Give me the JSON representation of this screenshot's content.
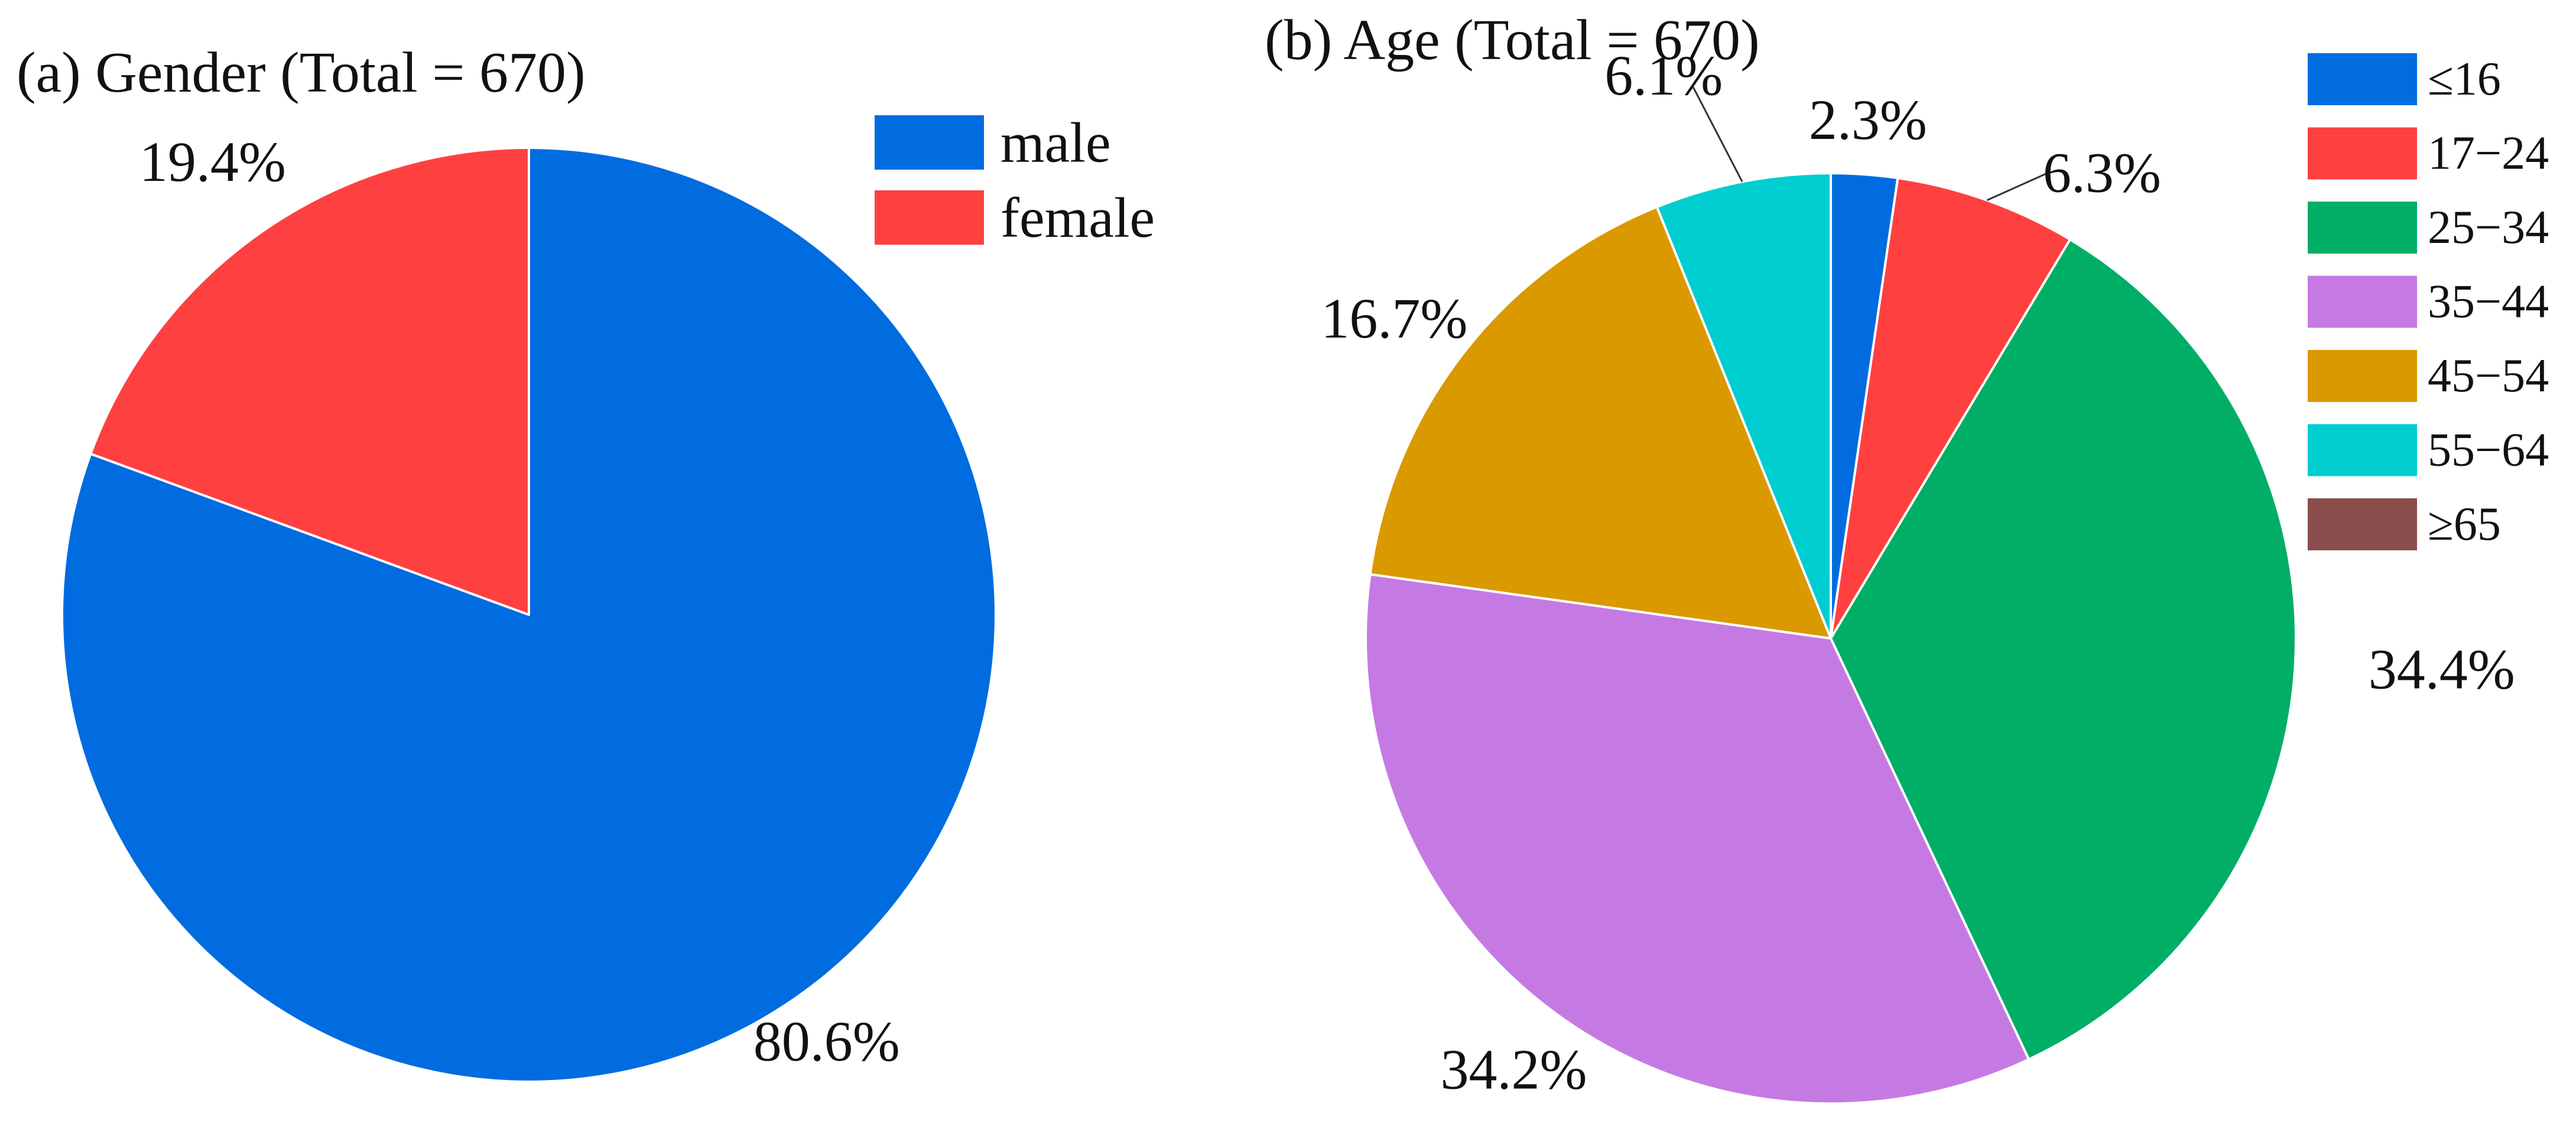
{
  "chart_data": [
    {
      "id": "gender",
      "type": "pie",
      "title": "(a) Gender (Total = 670)",
      "total": 670,
      "start_angle_deg": 0,
      "direction": "clockwise",
      "slices": [
        {
          "label": "male",
          "value": 80.6,
          "display": "80.6%",
          "color": "#006CE0"
        },
        {
          "label": "female",
          "value": 19.4,
          "display": "19.4%",
          "color": "#FF4040"
        }
      ],
      "legend": {
        "placement": "top-right",
        "entries": [
          {
            "label": "male",
            "color": "#006CE0"
          },
          {
            "label": "female",
            "color": "#FF4040"
          }
        ]
      }
    },
    {
      "id": "age",
      "type": "pie",
      "title": "(b) Age (Total = 670)",
      "total": 670,
      "start_angle_deg": 0,
      "direction": "clockwise",
      "slices": [
        {
          "label": "≤16",
          "value": 2.3,
          "display": "2.3%",
          "color": "#006CE0"
        },
        {
          "label": "17−24",
          "value": 6.3,
          "display": "6.3%",
          "color": "#FF4040"
        },
        {
          "label": "25−34",
          "value": 34.4,
          "display": "34.4%",
          "color": "#00AE66"
        },
        {
          "label": "35−44",
          "value": 34.2,
          "display": "34.2%",
          "color": "#C57AE3"
        },
        {
          "label": "45−54",
          "value": 16.7,
          "display": "16.7%",
          "color": "#DB9900"
        },
        {
          "label": "55−64",
          "value": 6.1,
          "display": "6.1%",
          "color": "#00CDD0"
        },
        {
          "label": "≥65",
          "value": 0,
          "display": "",
          "color": "#8B4C4C"
        }
      ],
      "legend": {
        "placement": "top-right",
        "entries": [
          {
            "label": "≤16",
            "color": "#006CE0"
          },
          {
            "label": "17−24",
            "color": "#FF4040"
          },
          {
            "label": "25−34",
            "color": "#00AE66"
          },
          {
            "label": "35−44",
            "color": "#C57AE3"
          },
          {
            "label": "45−54",
            "color": "#DB9900"
          },
          {
            "label": "55−64",
            "color": "#00CDD0"
          },
          {
            "label": "≥65",
            "color": "#8B4C4C"
          }
        ]
      }
    }
  ]
}
